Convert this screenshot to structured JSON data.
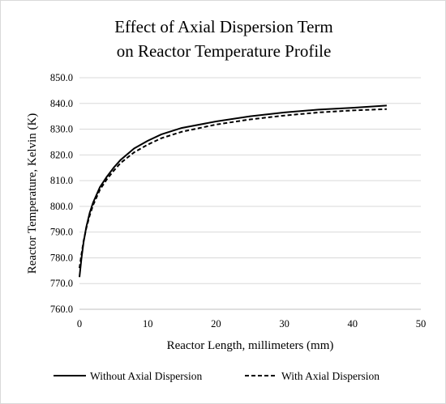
{
  "chart_data": {
    "type": "line",
    "title": "Effect of Axial Dispersion Term",
    "subtitle": "on Reactor Temperature Profile",
    "xlabel": "Reactor Length, millimeters (mm)",
    "ylabel": "Reactor Temperature, Kelvin (K)",
    "xlim": [
      0,
      50
    ],
    "ylim": [
      760,
      850
    ],
    "x_ticks": [
      "0",
      "10",
      "20",
      "30",
      "40",
      "50"
    ],
    "y_ticks": [
      "760.0",
      "770.0",
      "780.0",
      "790.0",
      "800.0",
      "810.0",
      "820.0",
      "830.0",
      "840.0",
      "850.0"
    ],
    "grid": "horizontal",
    "legend_position": "bottom",
    "series": [
      {
        "name": "Without Axial Dispersion",
        "color": "#000000",
        "style": "solid",
        "x": [
          0,
          0.3,
          0.6,
          1,
          1.5,
          2,
          3,
          4,
          5,
          6,
          8,
          10,
          12,
          15,
          20,
          25,
          30,
          35,
          40,
          45
        ],
        "y": [
          772.5,
          780,
          786,
          792,
          797.5,
          801.5,
          807.5,
          811.5,
          815,
          818,
          822.5,
          825.5,
          828,
          830.5,
          833,
          835,
          836.5,
          837.6,
          838.3,
          839.2
        ]
      },
      {
        "name": "With Axial Dispersion",
        "color": "#000000",
        "style": "dashed",
        "x": [
          0,
          0.3,
          0.6,
          1,
          1.5,
          2,
          3,
          4,
          5,
          6,
          8,
          10,
          12,
          15,
          20,
          25,
          30,
          35,
          40,
          45
        ],
        "y": [
          776,
          781.5,
          786.5,
          791.5,
          796.5,
          800.5,
          806.5,
          810.5,
          813.8,
          816.8,
          821,
          824,
          826.5,
          829,
          831.8,
          833.8,
          835.3,
          836.5,
          837.3,
          837.8
        ]
      }
    ]
  }
}
